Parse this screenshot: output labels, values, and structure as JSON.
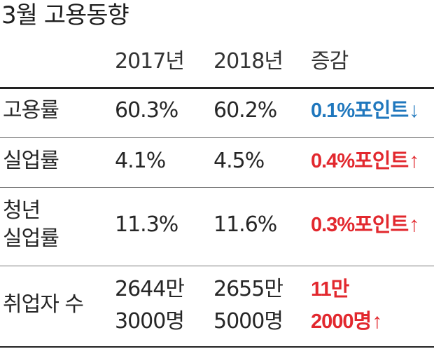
{
  "title": "3월 고용동향",
  "columns": [
    "2017년",
    "2018년",
    "증감"
  ],
  "rows": [
    {
      "label_lines": [
        "고용률"
      ],
      "y2017": [
        "60.3%"
      ],
      "y2018": [
        "60.2%"
      ],
      "change": [
        "0.1%포인트"
      ],
      "direction": "down",
      "arrow": "↓"
    },
    {
      "label_lines": [
        "실업률"
      ],
      "y2017": [
        "4.1%"
      ],
      "y2018": [
        "4.5%"
      ],
      "change": [
        "0.4%포인트"
      ],
      "direction": "up",
      "arrow": "↑"
    },
    {
      "label_lines": [
        "청년",
        "실업률"
      ],
      "y2017": [
        "11.3%"
      ],
      "y2018": [
        "11.6%"
      ],
      "change": [
        "0.3%포인트"
      ],
      "direction": "up",
      "arrow": "↑"
    },
    {
      "label_lines": [
        "취업자 수"
      ],
      "y2017": [
        "2644만",
        "3000명"
      ],
      "y2018": [
        "2655만",
        "5000명"
      ],
      "change": [
        "11만",
        "2000명"
      ],
      "direction": "up",
      "arrow": "↑"
    }
  ],
  "colors": {
    "down": "#1f77bd",
    "up": "#e2282e"
  }
}
